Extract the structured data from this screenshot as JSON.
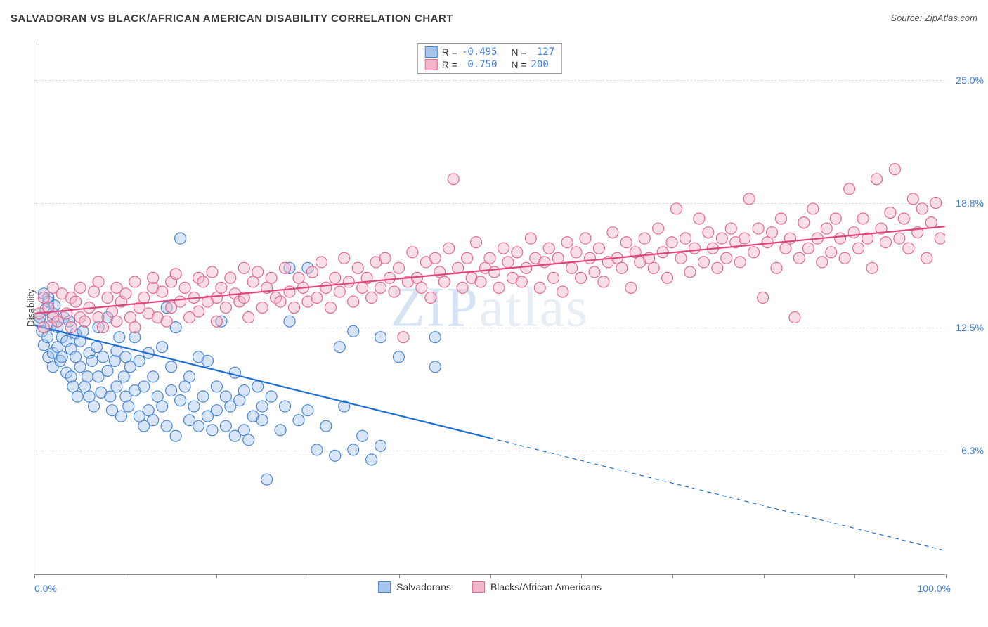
{
  "title": "SALVADORAN VS BLACK/AFRICAN AMERICAN DISABILITY CORRELATION CHART",
  "source_label": "Source:",
  "source_name": "ZipAtlas.com",
  "watermark": "ZIPatlas",
  "y_axis_title": "Disability",
  "chart": {
    "type": "scatter",
    "xlim": [
      0,
      100
    ],
    "ylim": [
      0,
      27
    ],
    "x_ticks": [
      0,
      10,
      20,
      30,
      40,
      50,
      60,
      70,
      80,
      90,
      100
    ],
    "x_tick_labels": {
      "0": "0.0%",
      "100": "100.0%"
    },
    "y_gridlines": [
      6.3,
      12.5,
      18.8,
      25.0
    ],
    "y_tick_labels": [
      "6.3%",
      "12.5%",
      "18.8%",
      "25.0%"
    ],
    "background_color": "#ffffff",
    "grid_color": "#dddddd",
    "axis_color": "#888888",
    "label_color": "#3b7dd8",
    "marker_radius": 8,
    "marker_opacity": 0.45,
    "line_width": 2.2
  },
  "series": [
    {
      "name": "Salvadorans",
      "key": "salvadorans",
      "fill_color": "#a7c5ec",
      "stroke_color": "#4a86d4",
      "line_color": "#1f6fd4",
      "R": "-0.495",
      "N": "127",
      "trend": {
        "x1": 0,
        "y1": 12.6,
        "x2": 100,
        "y2": 1.2,
        "solid_until_x": 50
      },
      "points": [
        [
          0.5,
          12.8
        ],
        [
          0.6,
          13.0
        ],
        [
          0.8,
          12.3
        ],
        [
          1.0,
          14.2
        ],
        [
          1.0,
          11.6
        ],
        [
          1.2,
          13.4
        ],
        [
          1.4,
          12.0
        ],
        [
          1.5,
          13.8
        ],
        [
          1.5,
          11.0
        ],
        [
          1.5,
          14.0
        ],
        [
          1.8,
          12.6
        ],
        [
          2.0,
          11.2
        ],
        [
          2.0,
          13.2
        ],
        [
          2.0,
          10.5
        ],
        [
          2.2,
          13.6
        ],
        [
          2.5,
          12.5
        ],
        [
          2.5,
          11.5
        ],
        [
          2.8,
          10.8
        ],
        [
          3.0,
          12.0
        ],
        [
          3.0,
          11.0
        ],
        [
          3.2,
          13.0
        ],
        [
          3.5,
          10.2
        ],
        [
          3.5,
          11.8
        ],
        [
          3.8,
          12.8
        ],
        [
          4.0,
          10.0
        ],
        [
          4.0,
          11.4
        ],
        [
          4.2,
          9.5
        ],
        [
          4.5,
          11.0
        ],
        [
          4.5,
          12.2
        ],
        [
          4.7,
          9.0
        ],
        [
          5.0,
          10.5
        ],
        [
          5.0,
          11.8
        ],
        [
          5.3,
          12.3
        ],
        [
          5.5,
          9.5
        ],
        [
          5.8,
          10.0
        ],
        [
          6.0,
          11.2
        ],
        [
          6.0,
          9.0
        ],
        [
          6.3,
          10.8
        ],
        [
          6.5,
          8.5
        ],
        [
          6.8,
          11.5
        ],
        [
          7.0,
          12.5
        ],
        [
          7.0,
          10.0
        ],
        [
          7.3,
          9.2
        ],
        [
          7.5,
          11.0
        ],
        [
          8.0,
          10.3
        ],
        [
          8.0,
          13.0
        ],
        [
          8.3,
          9.0
        ],
        [
          8.5,
          8.3
        ],
        [
          8.8,
          10.8
        ],
        [
          9.0,
          11.3
        ],
        [
          9.0,
          9.5
        ],
        [
          9.3,
          12.0
        ],
        [
          9.5,
          8.0
        ],
        [
          9.8,
          10.0
        ],
        [
          10.0,
          11.0
        ],
        [
          10.0,
          9.0
        ],
        [
          10.3,
          8.5
        ],
        [
          10.5,
          10.5
        ],
        [
          11.0,
          12.0
        ],
        [
          11.0,
          9.3
        ],
        [
          11.5,
          8.0
        ],
        [
          11.5,
          10.8
        ],
        [
          12.0,
          7.5
        ],
        [
          12.0,
          9.5
        ],
        [
          12.5,
          11.2
        ],
        [
          12.5,
          8.3
        ],
        [
          13.0,
          10.0
        ],
        [
          13.0,
          7.8
        ],
        [
          13.5,
          9.0
        ],
        [
          14.0,
          11.5
        ],
        [
          14.0,
          8.5
        ],
        [
          14.5,
          7.5
        ],
        [
          14.5,
          13.5
        ],
        [
          15.0,
          9.3
        ],
        [
          15.0,
          10.5
        ],
        [
          15.5,
          7.0
        ],
        [
          15.5,
          12.5
        ],
        [
          16.0,
          8.8
        ],
        [
          16.0,
          17.0
        ],
        [
          16.5,
          9.5
        ],
        [
          17.0,
          7.8
        ],
        [
          17.0,
          10.0
        ],
        [
          17.5,
          8.5
        ],
        [
          18.0,
          11.0
        ],
        [
          18.0,
          7.5
        ],
        [
          18.5,
          9.0
        ],
        [
          19.0,
          8.0
        ],
        [
          19.0,
          10.8
        ],
        [
          19.5,
          7.3
        ],
        [
          20.0,
          9.5
        ],
        [
          20.0,
          8.3
        ],
        [
          20.5,
          12.8
        ],
        [
          21.0,
          7.5
        ],
        [
          21.0,
          9.0
        ],
        [
          21.5,
          8.5
        ],
        [
          22.0,
          10.2
        ],
        [
          22.0,
          7.0
        ],
        [
          22.5,
          8.8
        ],
        [
          23.0,
          9.3
        ],
        [
          23.0,
          7.3
        ],
        [
          23.5,
          6.8
        ],
        [
          24.0,
          8.0
        ],
        [
          24.5,
          9.5
        ],
        [
          25.0,
          7.8
        ],
        [
          25.0,
          8.5
        ],
        [
          25.5,
          4.8
        ],
        [
          26.0,
          9.0
        ],
        [
          27.0,
          7.3
        ],
        [
          27.5,
          8.5
        ],
        [
          28.0,
          15.5
        ],
        [
          28.0,
          12.8
        ],
        [
          29.0,
          7.8
        ],
        [
          30.0,
          8.3
        ],
        [
          30.0,
          15.5
        ],
        [
          31.0,
          6.3
        ],
        [
          32.0,
          7.5
        ],
        [
          33.0,
          6.0
        ],
        [
          33.5,
          11.5
        ],
        [
          34.0,
          8.5
        ],
        [
          35.0,
          6.3
        ],
        [
          35.0,
          12.3
        ],
        [
          36.0,
          7.0
        ],
        [
          37.0,
          5.8
        ],
        [
          38.0,
          6.5
        ],
        [
          38.0,
          12.0
        ],
        [
          40.0,
          11.0
        ],
        [
          44.0,
          12.0
        ],
        [
          44.0,
          10.5
        ]
      ]
    },
    {
      "name": "Blacks/African Americans",
      "key": "blacks",
      "fill_color": "#f4b6c8",
      "stroke_color": "#e16990",
      "line_color": "#e0457c",
      "R": "0.750",
      "N": "200",
      "trend": {
        "x1": 0,
        "y1": 13.2,
        "x2": 100,
        "y2": 17.6,
        "solid_until_x": 100
      },
      "points": [
        [
          0.5,
          13.2
        ],
        [
          1.0,
          14.0
        ],
        [
          1.0,
          12.5
        ],
        [
          1.5,
          13.5
        ],
        [
          2.0,
          13.0
        ],
        [
          2.0,
          14.5
        ],
        [
          2.5,
          12.8
        ],
        [
          3.0,
          14.2
        ],
        [
          3.5,
          13.2
        ],
        [
          4.0,
          12.5
        ],
        [
          4.0,
          14.0
        ],
        [
          4.5,
          13.8
        ],
        [
          5.0,
          13.0
        ],
        [
          5.0,
          14.5
        ],
        [
          5.5,
          12.8
        ],
        [
          6.0,
          13.5
        ],
        [
          6.5,
          14.3
        ],
        [
          7.0,
          13.0
        ],
        [
          7.0,
          14.8
        ],
        [
          7.5,
          12.5
        ],
        [
          8.0,
          14.0
        ],
        [
          8.5,
          13.3
        ],
        [
          9.0,
          14.5
        ],
        [
          9.0,
          12.8
        ],
        [
          9.5,
          13.8
        ],
        [
          10.0,
          14.2
        ],
        [
          10.5,
          13.0
        ],
        [
          11.0,
          14.8
        ],
        [
          11.0,
          12.5
        ],
        [
          11.5,
          13.5
        ],
        [
          12.0,
          14.0
        ],
        [
          12.5,
          13.2
        ],
        [
          13.0,
          14.5
        ],
        [
          13.0,
          15.0
        ],
        [
          13.5,
          13.0
        ],
        [
          14.0,
          14.3
        ],
        [
          14.5,
          12.8
        ],
        [
          15.0,
          14.8
        ],
        [
          15.0,
          13.5
        ],
        [
          15.5,
          15.2
        ],
        [
          16.0,
          13.8
        ],
        [
          16.5,
          14.5
        ],
        [
          17.0,
          13.0
        ],
        [
          17.5,
          14.0
        ],
        [
          18.0,
          15.0
        ],
        [
          18.0,
          13.3
        ],
        [
          18.5,
          14.8
        ],
        [
          19.0,
          13.8
        ],
        [
          19.5,
          15.3
        ],
        [
          20.0,
          14.0
        ],
        [
          20.0,
          12.8
        ],
        [
          20.5,
          14.5
        ],
        [
          21.0,
          13.5
        ],
        [
          21.5,
          15.0
        ],
        [
          22.0,
          14.2
        ],
        [
          22.5,
          13.8
        ],
        [
          23.0,
          15.5
        ],
        [
          23.0,
          14.0
        ],
        [
          23.5,
          13.0
        ],
        [
          24.0,
          14.8
        ],
        [
          24.5,
          15.3
        ],
        [
          25.0,
          13.5
        ],
        [
          25.5,
          14.5
        ],
        [
          26.0,
          15.0
        ],
        [
          26.5,
          14.0
        ],
        [
          27.0,
          13.8
        ],
        [
          27.5,
          15.5
        ],
        [
          28.0,
          14.3
        ],
        [
          28.5,
          13.5
        ],
        [
          29.0,
          15.0
        ],
        [
          29.5,
          14.5
        ],
        [
          30.0,
          13.8
        ],
        [
          30.5,
          15.3
        ],
        [
          31.0,
          14.0
        ],
        [
          31.5,
          15.8
        ],
        [
          32.0,
          14.5
        ],
        [
          32.5,
          13.5
        ],
        [
          33.0,
          15.0
        ],
        [
          33.5,
          14.3
        ],
        [
          34.0,
          16.0
        ],
        [
          34.5,
          14.8
        ],
        [
          35.0,
          13.8
        ],
        [
          35.5,
          15.5
        ],
        [
          36.0,
          14.5
        ],
        [
          36.5,
          15.0
        ],
        [
          37.0,
          14.0
        ],
        [
          37.5,
          15.8
        ],
        [
          38.0,
          14.5
        ],
        [
          38.5,
          16.0
        ],
        [
          39.0,
          15.0
        ],
        [
          39.5,
          14.3
        ],
        [
          40.0,
          15.5
        ],
        [
          40.5,
          12.0
        ],
        [
          41.0,
          14.8
        ],
        [
          41.5,
          16.3
        ],
        [
          42.0,
          15.0
        ],
        [
          42.5,
          14.5
        ],
        [
          43.0,
          15.8
        ],
        [
          43.5,
          14.0
        ],
        [
          44.0,
          16.0
        ],
        [
          44.5,
          15.3
        ],
        [
          45.0,
          14.8
        ],
        [
          45.5,
          16.5
        ],
        [
          46.0,
          20.0
        ],
        [
          46.5,
          15.5
        ],
        [
          47.0,
          14.5
        ],
        [
          47.5,
          16.0
        ],
        [
          48.0,
          15.0
        ],
        [
          48.5,
          16.8
        ],
        [
          49.0,
          14.8
        ],
        [
          49.5,
          15.5
        ],
        [
          50.0,
          16.0
        ],
        [
          50.5,
          15.3
        ],
        [
          51.0,
          14.5
        ],
        [
          51.5,
          16.5
        ],
        [
          52.0,
          15.8
        ],
        [
          52.5,
          15.0
        ],
        [
          53.0,
          16.3
        ],
        [
          53.5,
          14.8
        ],
        [
          54.0,
          15.5
        ],
        [
          54.5,
          17.0
        ],
        [
          55.0,
          16.0
        ],
        [
          55.5,
          14.5
        ],
        [
          56.0,
          15.8
        ],
        [
          56.5,
          16.5
        ],
        [
          57.0,
          15.0
        ],
        [
          57.5,
          16.0
        ],
        [
          58.0,
          14.3
        ],
        [
          58.5,
          16.8
        ],
        [
          59.0,
          15.5
        ],
        [
          59.5,
          16.3
        ],
        [
          60.0,
          15.0
        ],
        [
          60.5,
          17.0
        ],
        [
          61.0,
          16.0
        ],
        [
          61.5,
          15.3
        ],
        [
          62.0,
          16.5
        ],
        [
          62.5,
          14.8
        ],
        [
          63.0,
          15.8
        ],
        [
          63.5,
          17.3
        ],
        [
          64.0,
          16.0
        ],
        [
          64.5,
          15.5
        ],
        [
          65.0,
          16.8
        ],
        [
          65.5,
          14.5
        ],
        [
          66.0,
          16.3
        ],
        [
          66.5,
          15.8
        ],
        [
          67.0,
          17.0
        ],
        [
          67.5,
          16.0
        ],
        [
          68.0,
          15.5
        ],
        [
          68.5,
          17.5
        ],
        [
          69.0,
          16.3
        ],
        [
          69.5,
          15.0
        ],
        [
          70.0,
          16.8
        ],
        [
          70.5,
          18.5
        ],
        [
          71.0,
          16.0
        ],
        [
          71.5,
          17.0
        ],
        [
          72.0,
          15.3
        ],
        [
          72.5,
          16.5
        ],
        [
          73.0,
          18.0
        ],
        [
          73.5,
          15.8
        ],
        [
          74.0,
          17.3
        ],
        [
          74.5,
          16.5
        ],
        [
          75.0,
          15.5
        ],
        [
          75.5,
          17.0
        ],
        [
          76.0,
          16.0
        ],
        [
          76.5,
          17.5
        ],
        [
          77.0,
          16.8
        ],
        [
          77.5,
          15.8
        ],
        [
          78.0,
          17.0
        ],
        [
          78.5,
          19.0
        ],
        [
          79.0,
          16.3
        ],
        [
          79.5,
          17.5
        ],
        [
          80.0,
          14.0
        ],
        [
          80.5,
          16.8
        ],
        [
          81.0,
          17.3
        ],
        [
          81.5,
          15.5
        ],
        [
          82.0,
          18.0
        ],
        [
          82.5,
          16.5
        ],
        [
          83.0,
          17.0
        ],
        [
          83.5,
          13.0
        ],
        [
          84.0,
          16.0
        ],
        [
          84.5,
          17.8
        ],
        [
          85.0,
          16.5
        ],
        [
          85.5,
          18.5
        ],
        [
          86.0,
          17.0
        ],
        [
          86.5,
          15.8
        ],
        [
          87.0,
          17.5
        ],
        [
          87.5,
          16.3
        ],
        [
          88.0,
          18.0
        ],
        [
          88.5,
          17.0
        ],
        [
          89.0,
          16.0
        ],
        [
          89.5,
          19.5
        ],
        [
          90.0,
          17.3
        ],
        [
          90.5,
          16.5
        ],
        [
          91.0,
          18.0
        ],
        [
          91.5,
          17.0
        ],
        [
          92.0,
          15.5
        ],
        [
          92.5,
          20.0
        ],
        [
          93.0,
          17.5
        ],
        [
          93.5,
          16.8
        ],
        [
          94.0,
          18.3
        ],
        [
          94.5,
          20.5
        ],
        [
          95.0,
          17.0
        ],
        [
          95.5,
          18.0
        ],
        [
          96.0,
          16.5
        ],
        [
          96.5,
          19.0
        ],
        [
          97.0,
          17.3
        ],
        [
          97.5,
          18.5
        ],
        [
          98.0,
          16.0
        ],
        [
          98.5,
          17.8
        ],
        [
          99.0,
          18.8
        ],
        [
          99.5,
          17.0
        ]
      ]
    }
  ],
  "legend_labels": {
    "R": "R =",
    "N": "N ="
  },
  "bottom_legend": [
    "Salvadorans",
    "Blacks/African Americans"
  ]
}
